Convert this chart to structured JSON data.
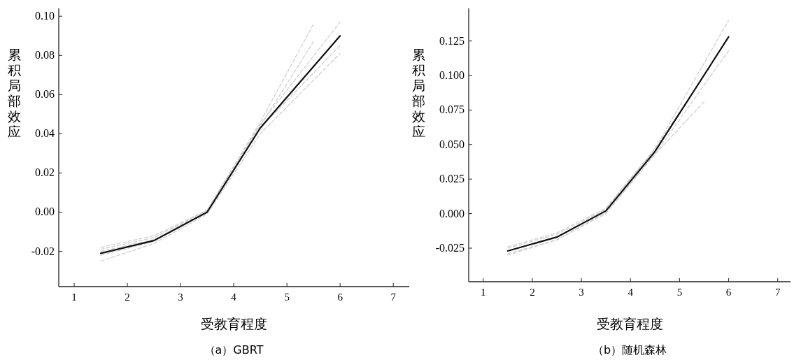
{
  "chart_data": [
    {
      "type": "line",
      "title": "（a）GBRT",
      "xlabel": "受教育程度",
      "ylabel": "累积局部效应",
      "xlim": [
        0.71,
        7.3
      ],
      "ylim": [
        -0.038,
        0.104
      ],
      "xticks": [
        1,
        2,
        3,
        4,
        5,
        6,
        7
      ],
      "yticks": [
        {
          "value": -0.02,
          "label": "-0.02"
        },
        {
          "value": 0,
          "label": "0.00"
        },
        {
          "value": 0.02,
          "label": "0.02"
        },
        {
          "value": 0.04,
          "label": "0.04"
        },
        {
          "value": 0.06,
          "label": "0.06"
        },
        {
          "value": 0.08,
          "label": "0.08"
        },
        {
          "value": 0.1,
          "label": "0.10"
        }
      ],
      "grid": false,
      "series": [
        {
          "color": "#cccccc",
          "line_style": "dashed",
          "x": [
            1.5,
            2.5,
            3.5,
            4.5,
            5.5
          ],
          "values": [
            -0.019,
            -0.013,
            0.001,
            0.046,
            0.096
          ]
        },
        {
          "color": "#cccccc",
          "line_style": "dashed",
          "x": [
            1.5,
            2.5,
            3.5,
            4.5,
            5.5
          ],
          "values": [
            -0.022,
            -0.015,
            0,
            0.044,
            0.087
          ]
        },
        {
          "color": "#cccccc",
          "line_style": "dashed",
          "x": [
            1.5,
            2.5,
            3.5,
            4.5,
            6
          ],
          "values": [
            -0.018,
            -0.012,
            0.001,
            0.045,
            0.097
          ]
        },
        {
          "color": "#cccccc",
          "line_style": "dashed",
          "x": [
            1.5,
            2.5,
            3.5,
            4.5,
            6
          ],
          "values": [
            -0.025,
            -0.016,
            -0.001,
            0.04,
            0.081
          ]
        },
        {
          "color": "#cccccc",
          "line_style": "dashed",
          "x": [
            1.5,
            2.5,
            3.5,
            4.5,
            6
          ],
          "values": [
            -0.02,
            -0.014,
            0.0005,
            0.043,
            0.085
          ]
        },
        {
          "color": "#111111",
          "line_style": "solid",
          "x": [
            1.5,
            2.5,
            3.5,
            4.5,
            6
          ],
          "values": [
            -0.021,
            -0.0145,
            0,
            0.043,
            0.09
          ]
        }
      ]
    },
    {
      "type": "line",
      "title": "（b）随机森林",
      "xlabel": "受教育程度",
      "ylabel": "累积局部效应",
      "xlim": [
        0.705,
        7.26
      ],
      "ylim": [
        -0.0493,
        0.1486
      ],
      "xticks": [
        1,
        2,
        3,
        4,
        5,
        6,
        7
      ],
      "yticks": [
        {
          "value": -0.025,
          "label": "-0.025"
        },
        {
          "value": 0,
          "label": "0.000"
        },
        {
          "value": 0.025,
          "label": "0.025"
        },
        {
          "value": 0.05,
          "label": "0.050"
        },
        {
          "value": 0.075,
          "label": "0.075"
        },
        {
          "value": 0.1,
          "label": "0.100"
        },
        {
          "value": 0.125,
          "label": "0.125"
        }
      ],
      "grid": false,
      "series": [
        {
          "color": "#cccccc",
          "line_style": "dashed",
          "x": [
            1.5,
            2.5,
            3.5,
            4.5,
            5.5
          ],
          "values": [
            -0.024,
            -0.014,
            0.004,
            0.047,
            0.1
          ]
        },
        {
          "color": "#cccccc",
          "line_style": "dashed",
          "x": [
            1.5,
            2.5,
            3.5,
            4.5,
            5.5
          ],
          "values": [
            -0.029,
            -0.019,
            0.001,
            0.043,
            0.081
          ]
        },
        {
          "color": "#cccccc",
          "line_style": "dashed",
          "x": [
            1.5,
            2.5,
            3.5,
            4.5,
            6
          ],
          "values": [
            -0.025,
            -0.015,
            0.003,
            0.047,
            0.14
          ]
        },
        {
          "color": "#cccccc",
          "line_style": "dashed",
          "x": [
            1.5,
            2.5,
            3.5,
            4.5,
            6
          ],
          "values": [
            -0.03,
            -0.019,
            0,
            0.043,
            0.118
          ]
        },
        {
          "color": "#111111",
          "line_style": "solid",
          "x": [
            1.5,
            2.5,
            3.5,
            4.5,
            6
          ],
          "values": [
            -0.027,
            -0.017,
            0.002,
            0.045,
            0.128
          ]
        }
      ]
    }
  ]
}
